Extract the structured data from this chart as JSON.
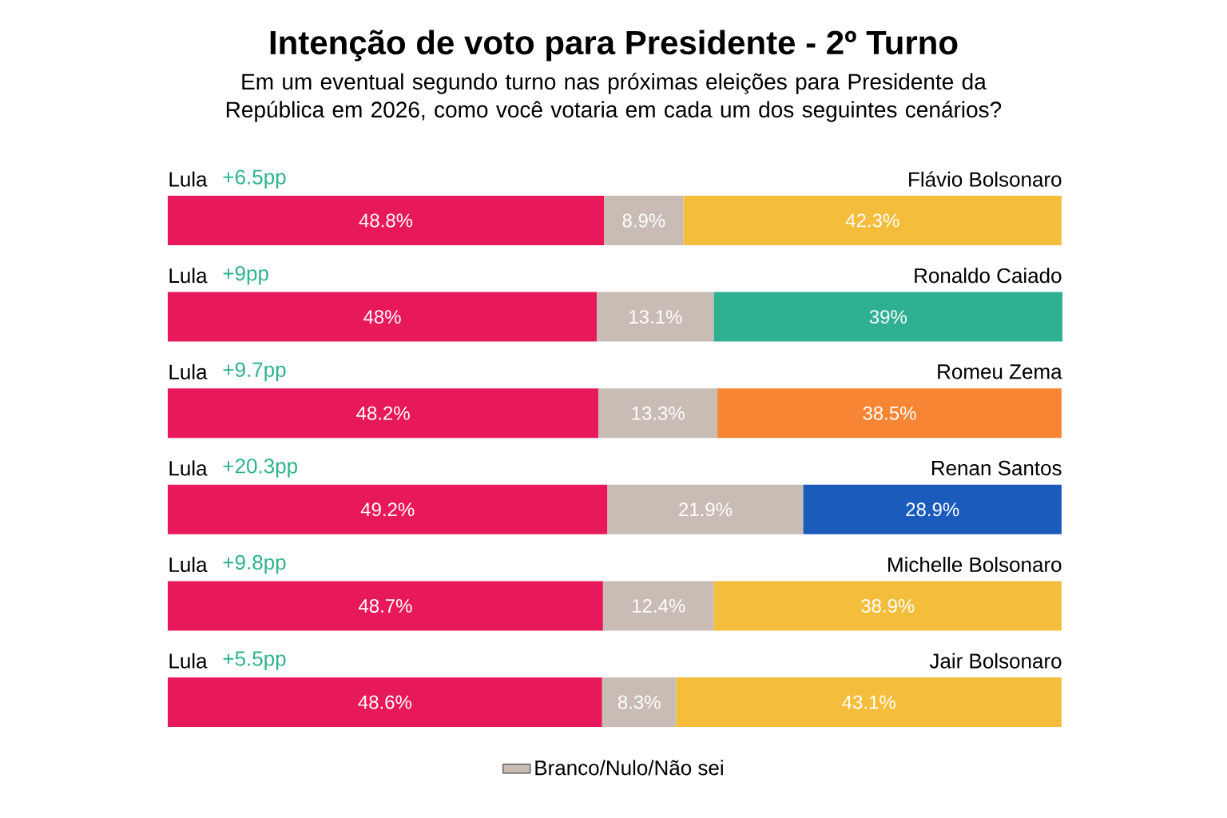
{
  "chart_data": {
    "type": "bar",
    "orientation": "horizontal",
    "stacked": true,
    "legend": "bottom",
    "title": "Intenção de voto para Presidente - 2º Turno",
    "subtitle": "Em um eventual segundo turno nas próximas eleições para Presidente da República em 2026, como você votaria em cada um dos seguintes cenários?",
    "categories": [
      "Flávio Bolsonaro",
      "Ronaldo Caiado",
      "Romeu Zema",
      "Renan Santos",
      "Michelle Bolsonaro",
      "Jair Bolsonaro"
    ],
    "series": [
      {
        "name": "Lula",
        "color": "#e8195a",
        "values": [
          48.8,
          48,
          48.2,
          49.2,
          48.7,
          48.6
        ],
        "value_labels": [
          "48.8%",
          "48%",
          "48.2%",
          "49.2%",
          "48.7%",
          "48.6%"
        ]
      },
      {
        "name": "Branco/Nulo/Não sei",
        "color": "#c9bcb4",
        "values": [
          8.9,
          13.1,
          13.3,
          21.9,
          12.4,
          8.3
        ],
        "value_labels": [
          "8.9%",
          "13.1%",
          "13.3%",
          "21.9%",
          "12.4%",
          "8.3%"
        ]
      },
      {
        "colors": [
          "#f5bd3c",
          "#2fb092",
          "#f78533",
          "#1a5bbb",
          "#f5bd3c",
          "#f5bd3c"
        ],
        "values": [
          42.3,
          39,
          38.5,
          28.9,
          38.9,
          43.1
        ],
        "value_labels": [
          "42.3%",
          "39%",
          "38.5%",
          "28.9%",
          "38.9%",
          "43.1%"
        ]
      }
    ],
    "annotations": [
      "+6.5pp",
      "+9pp",
      "+9.7pp",
      "+20.3pp",
      "+9.8pp",
      "+5.5pp"
    ]
  }
}
